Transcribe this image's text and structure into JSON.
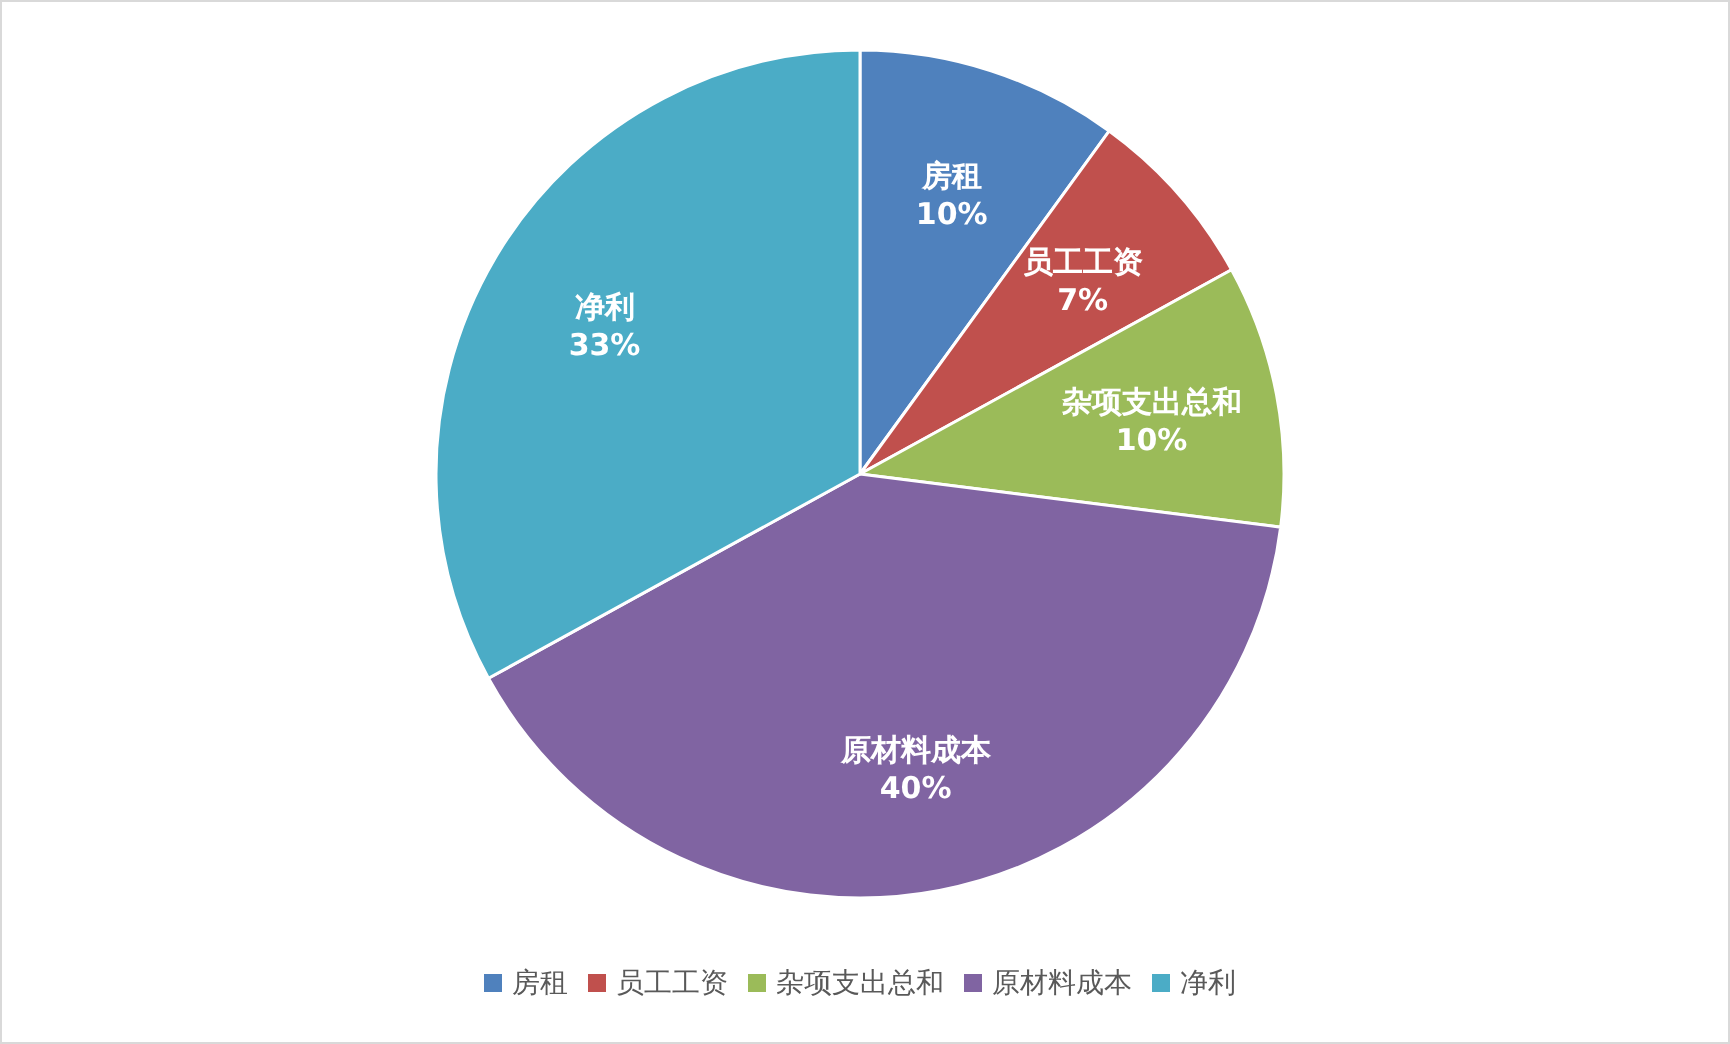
{
  "chart_data": {
    "type": "pie",
    "categories": [
      "房租",
      "员工工资",
      "杂项支出总和",
      "原材料成本",
      "净利"
    ],
    "values": [
      10,
      7,
      10,
      40,
      33
    ],
    "colors": [
      "#4f81bd",
      "#c0504d",
      "#9bbb59",
      "#8064a2",
      "#4bacc6"
    ],
    "value_labels": [
      "10%",
      "7%",
      "10%",
      "40%",
      "33%"
    ],
    "legend": "bottom"
  }
}
